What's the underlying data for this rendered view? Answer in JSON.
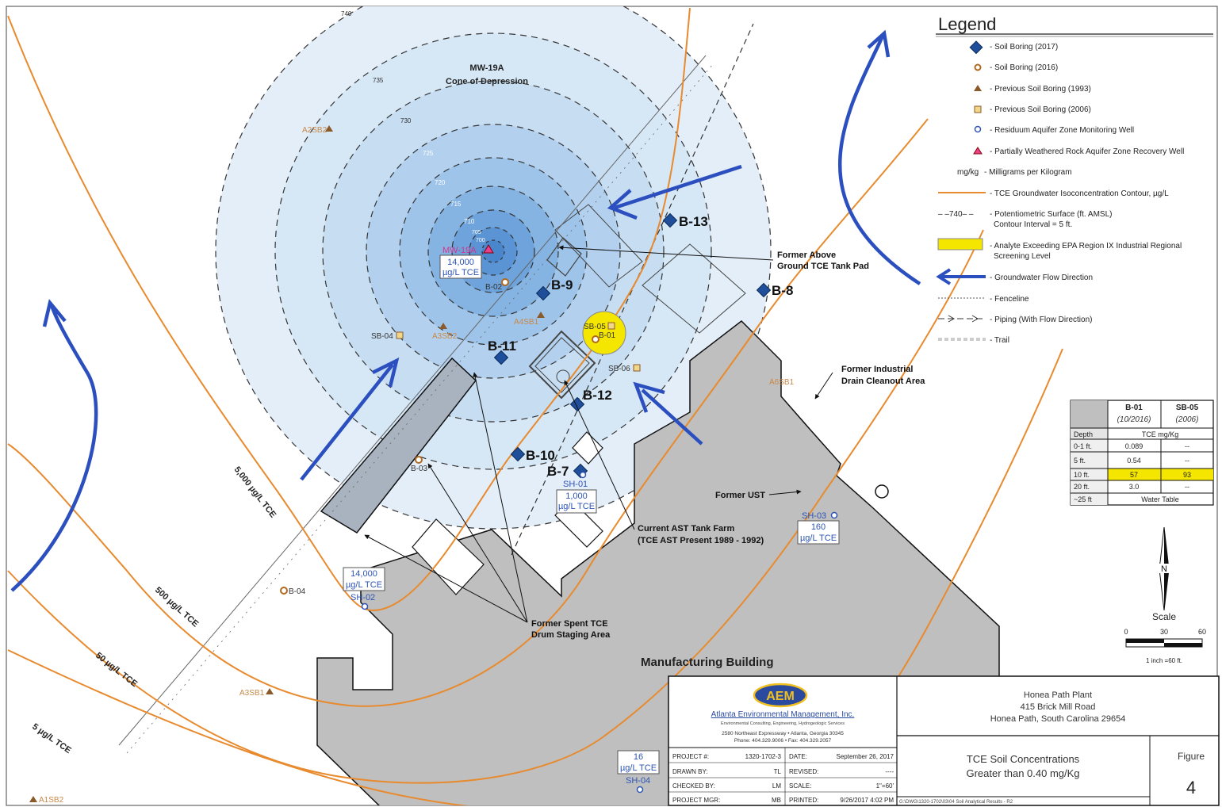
{
  "legend": {
    "title": "Legend",
    "items": [
      {
        "icon": "diamond-blue-icon",
        "text": "- Soil Boring (2017)"
      },
      {
        "icon": "circle-orange-icon",
        "text": "- Soil Boring (2016)"
      },
      {
        "icon": "triangle-orange-icon",
        "text": "- Previous Soil Boring (1993)"
      },
      {
        "icon": "square-orange-icon",
        "text": "- Previous Soil Boring (2006)"
      },
      {
        "icon": "well-blue-icon",
        "text": "- Residuum Aquifer Zone Monitoring Well"
      },
      {
        "icon": "well-pink-icon",
        "text": "- Partially Weathered Rock Aquifer Zone Recovery Well"
      },
      {
        "icon": "mgkg-text",
        "text": "mg/kg",
        "desc": "- Milligrams per Kilogram"
      },
      {
        "icon": "orange-line-icon",
        "text": "- TCE Groundwater Isoconcentration Contour, µg/L"
      },
      {
        "icon": "dashed-line-icon",
        "prefix": "– –740– –",
        "text": "- Potentiometric Surface (ft. AMSL)",
        "text2": "Contour Interval = 5 ft."
      },
      {
        "icon": "yellow-box-icon",
        "text": "- Analyte Exceeding EPA Region IX Industrial Regional",
        "text2": "Screening Level"
      },
      {
        "icon": "arrow-blue-icon",
        "text": "- Groundwater Flow Direction"
      },
      {
        "icon": "fence-line-icon",
        "text": "- Fenceline"
      },
      {
        "icon": "piping-line-icon",
        "text": "- Piping (With Flow Direction)"
      },
      {
        "icon": "trail-line-icon",
        "text": "- Trail"
      }
    ]
  },
  "map": {
    "cone_title": "MW-19A",
    "cone_subtitle": "Cone of Depression",
    "cone_contours": [
      "740",
      "735",
      "730",
      "725",
      "720",
      "715",
      "710",
      "705",
      "700"
    ],
    "borings_2017": [
      {
        "id": "B-13",
        "label": "B-13"
      },
      {
        "id": "B-9",
        "label": "B-9"
      },
      {
        "id": "B-8",
        "label": "B-8"
      },
      {
        "id": "B-11",
        "label": "B-11"
      },
      {
        "id": "B-12",
        "label": "B-12"
      },
      {
        "id": "B-10",
        "label": "B-10"
      },
      {
        "id": "B-7",
        "label": "B-7"
      }
    ],
    "borings_2016": [
      "B-02",
      "B-01",
      "B-03",
      "B-04"
    ],
    "borings_1993": [
      "A2SB2",
      "A4SB1",
      "A3SB2",
      "A6SB1",
      "A3SB1",
      "A1SB2"
    ],
    "borings_2006": [
      "SB-04",
      "SB-05",
      "SB-06"
    ],
    "wells": [
      {
        "id": "MW-19A",
        "value": "14,000",
        "unit": "µg/L TCE"
      },
      {
        "id": "SH-01",
        "value": "1,000",
        "unit": "µg/L TCE"
      },
      {
        "id": "SH-02",
        "value": "14,000",
        "unit": "µg/L TCE"
      },
      {
        "id": "SH-03",
        "value": "160",
        "unit": "µg/L TCE"
      },
      {
        "id": "SH-04",
        "value": "16",
        "unit": "µg/L TCE"
      }
    ],
    "iso_contours": [
      "5,000 µg/L TCE",
      "500 µg/L TCE",
      "50 µg/L TCE",
      "5 µg/L TCE"
    ],
    "callouts": {
      "tank_pad_1": "Former Above",
      "tank_pad_2": "Ground TCE Tank Pad",
      "drain_1": "Former Industrial",
      "drain_2": "Drain Cleanout Area",
      "ust": "Former UST",
      "ast_1": "Current AST Tank Farm",
      "ast_2": "(TCE AST Present 1989 - 1992)",
      "drum_1": "Former Spent TCE",
      "drum_2": "Drum Staging Area",
      "building": "Manufacturing Building"
    }
  },
  "data_table": {
    "columns": [
      {
        "name": "B-01",
        "date": "(10/2016)"
      },
      {
        "name": "SB-05",
        "date": "(2006)"
      }
    ],
    "depth_header": "Depth",
    "unit_header": "TCE mg/Kg",
    "rows": [
      {
        "depth": "0-1 ft.",
        "b01": "0.089",
        "sb05": "--",
        "exceed": false
      },
      {
        "depth": "5 ft.",
        "b01": "0.54",
        "sb05": "--",
        "exceed": false
      },
      {
        "depth": "10 ft.",
        "b01": "57",
        "sb05": "93",
        "exceed": true
      },
      {
        "depth": "20 ft.",
        "b01": "3.0",
        "sb05": "--",
        "exceed": false
      }
    ],
    "last_row": {
      "depth": "~25 ft",
      "value": "Water Table"
    }
  },
  "north": {
    "label": "N"
  },
  "scale": {
    "title": "Scale",
    "ticks": [
      "0",
      "30",
      "60"
    ],
    "note": "1 inch =60 ft."
  },
  "title_block": {
    "logo": "AEM",
    "company": "Atlanta Environmental Management, Inc.",
    "tagline": "Environmental Consulting, Engineering, Hydrogeologic Services",
    "address": "2580 Northeast Expressway • Atlanta, Georgia 30345",
    "phone": "Phone: 404.329.9006 • Fax: 404.329.2057",
    "site_name": "Honea Path Plant",
    "site_street": "415 Brick Mill Road",
    "site_city": "Honea Path, South Carolina 29654",
    "fig_title_1": "TCE Soil Concentrations",
    "fig_title_2": "Greater than 0.40 mg/Kg",
    "figure_label": "Figure",
    "figure_number": "4",
    "fields": {
      "project_no_label": "PROJECT #:",
      "project_no": "1320-1702-3",
      "date_label": "DATE:",
      "date": "September 26, 2017",
      "drawn_label": "DRAWN BY:",
      "drawn": "TL",
      "revised_label": "REVISED:",
      "revised": "----",
      "checked_label": "CHECKED BY:",
      "checked": "LM",
      "scale_label": "SCALE:",
      "scale": "1\"=60'",
      "mgr_label": "PROJECT MGR:",
      "mgr": "MB",
      "printed_label": "PRINTED:",
      "printed": "9/26/2017 4:02 PM",
      "path": "G:\\DWG\\1320-1702\\03\\04 Soil Analytical Results - R2"
    }
  }
}
